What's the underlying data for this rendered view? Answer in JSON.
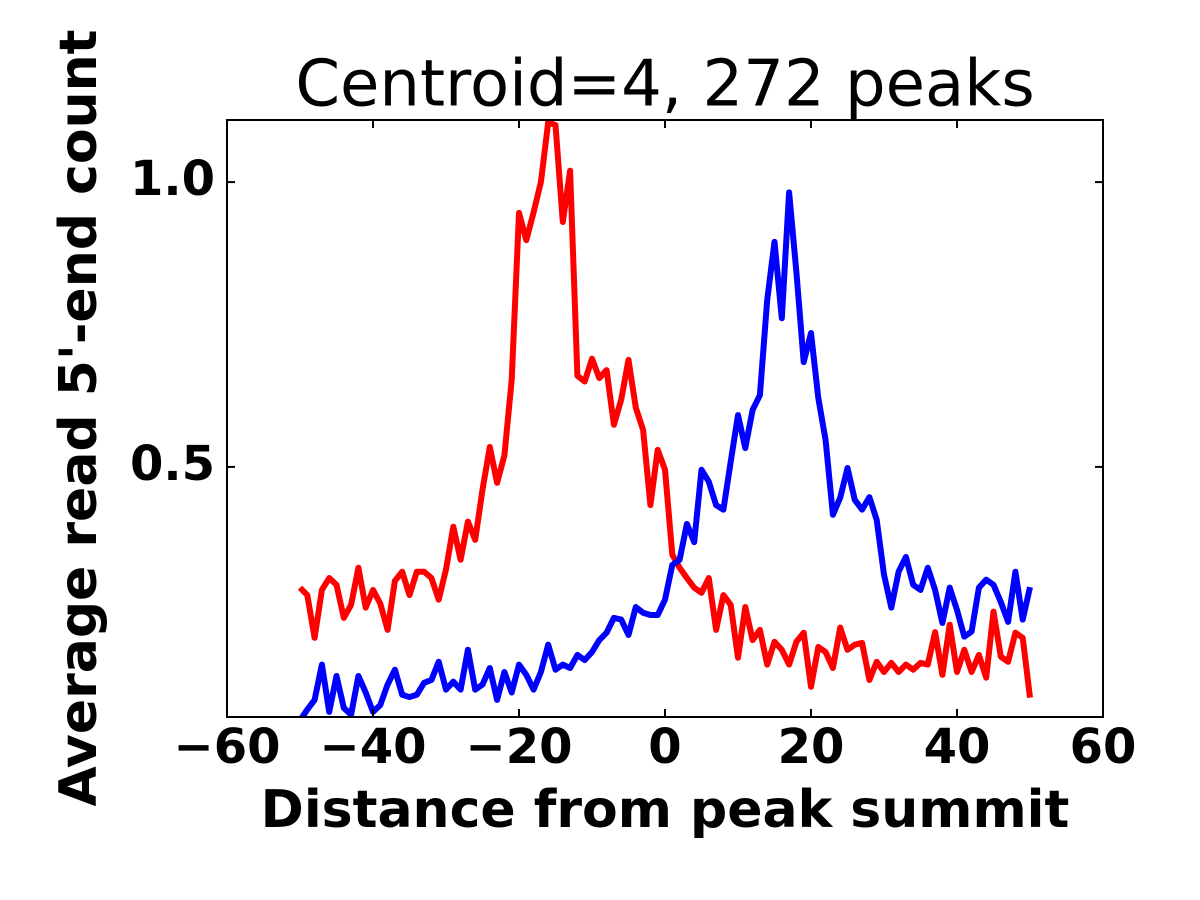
{
  "chart_data": {
    "type": "line",
    "title": "Centroid=4, 272 peaks",
    "xlabel": "Distance from peak summit",
    "ylabel": "Average read 5'-end count",
    "x": [
      -50,
      -49,
      -48,
      -47,
      -46,
      -45,
      -44,
      -43,
      -42,
      -41,
      -40,
      -39,
      -38,
      -37,
      -36,
      -35,
      -34,
      -33,
      -32,
      -31,
      -30,
      -29,
      -28,
      -27,
      -26,
      -25,
      -24,
      -23,
      -22,
      -21,
      -20,
      -19,
      -18,
      -17,
      -16,
      -15,
      -14,
      -13,
      -12,
      -11,
      -10,
      -9,
      -8,
      -7,
      -6,
      -5,
      -4,
      -3,
      -2,
      -1,
      0,
      1,
      2,
      3,
      4,
      5,
      6,
      7,
      8,
      9,
      10,
      11,
      12,
      13,
      14,
      15,
      16,
      17,
      18,
      19,
      20,
      21,
      22,
      23,
      24,
      25,
      26,
      27,
      28,
      29,
      30,
      31,
      32,
      33,
      34,
      35,
      36,
      37,
      38,
      39,
      40,
      41,
      42,
      43,
      44,
      45,
      46,
      47,
      48,
      49,
      50
    ],
    "series": [
      {
        "name": "red",
        "color": "#ff0000",
        "values": [
          0.288,
          0.275,
          0.2,
          0.284,
          0.305,
          0.293,
          0.235,
          0.258,
          0.323,
          0.253,
          0.284,
          0.26,
          0.214,
          0.3,
          0.316,
          0.275,
          0.316,
          0.316,
          0.305,
          0.267,
          0.32,
          0.395,
          0.337,
          0.404,
          0.372,
          0.46,
          0.535,
          0.472,
          0.52,
          0.653,
          0.946,
          0.898,
          0.947,
          1.0,
          1.105,
          1.1,
          0.93,
          1.02,
          0.66,
          0.65,
          0.69,
          0.656,
          0.67,
          0.574,
          0.618,
          0.688,
          0.604,
          0.565,
          0.433,
          0.53,
          0.495,
          0.346,
          0.323,
          0.305,
          0.288,
          0.279,
          0.305,
          0.214,
          0.275,
          0.258,
          0.165,
          0.254,
          0.196,
          0.214,
          0.153,
          0.193,
          0.179,
          0.153,
          0.193,
          0.209,
          0.114,
          0.184,
          0.175,
          0.147,
          0.218,
          0.179,
          0.188,
          0.191,
          0.126,
          0.158,
          0.14,
          0.156,
          0.14,
          0.153,
          0.144,
          0.156,
          0.153,
          0.21,
          0.135,
          0.223,
          0.14,
          0.179,
          0.14,
          0.17,
          0.13,
          0.246,
          0.167,
          0.158,
          0.209,
          0.2,
          0.095
        ]
      },
      {
        "name": "blue",
        "color": "#0000ff",
        "values": [
          0.055,
          0.074,
          0.091,
          0.153,
          0.07,
          0.133,
          0.077,
          0.065,
          0.133,
          0.104,
          0.07,
          0.082,
          0.118,
          0.144,
          0.1,
          0.096,
          0.1,
          0.121,
          0.126,
          0.158,
          0.109,
          0.123,
          0.109,
          0.179,
          0.109,
          0.118,
          0.147,
          0.091,
          0.14,
          0.104,
          0.153,
          0.135,
          0.109,
          0.14,
          0.188,
          0.144,
          0.153,
          0.147,
          0.17,
          0.161,
          0.175,
          0.196,
          0.209,
          0.235,
          0.232,
          0.205,
          0.254,
          0.244,
          0.24,
          0.24,
          0.267,
          0.328,
          0.337,
          0.4,
          0.368,
          0.495,
          0.474,
          0.433,
          0.425,
          0.509,
          0.591,
          0.533,
          0.6,
          0.626,
          0.793,
          0.895,
          0.761,
          0.982,
          0.842,
          0.684,
          0.735,
          0.621,
          0.547,
          0.416,
          0.446,
          0.498,
          0.442,
          0.425,
          0.447,
          0.407,
          0.311,
          0.253,
          0.316,
          0.342,
          0.293,
          0.284,
          0.323,
          0.284,
          0.226,
          0.288,
          0.249,
          0.202,
          0.211,
          0.288,
          0.302,
          0.293,
          0.263,
          0.228,
          0.316,
          0.232,
          0.289
        ]
      }
    ],
    "xlim": [
      -60,
      60
    ],
    "xticks": [
      {
        "value": -60,
        "label": "−60"
      },
      {
        "value": -40,
        "label": "−40"
      },
      {
        "value": -20,
        "label": "−20"
      },
      0,
      20,
      40,
      60
    ],
    "ylim": [
      0.061,
      1.109
    ],
    "yticks": [
      {
        "value": 0.5,
        "label": "0.5"
      },
      {
        "value": 1.0,
        "label": "1.0"
      }
    ]
  }
}
